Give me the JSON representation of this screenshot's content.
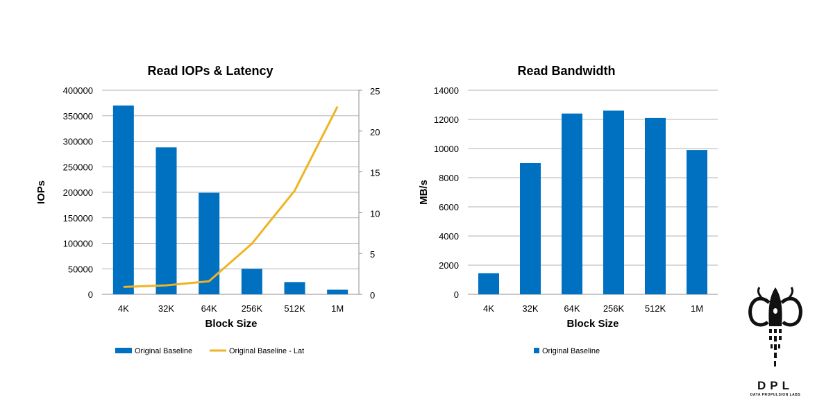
{
  "chart_data": [
    {
      "type": "bar",
      "title": "Read IOPs & Latency",
      "xlabel": "Block Size",
      "ylabel": "IOPs",
      "categories": [
        "4K",
        "32K",
        "64K",
        "256K",
        "512K",
        "1M"
      ],
      "ylim": [
        0,
        400000
      ],
      "y_ticks": [
        "0",
        "50000",
        "100000",
        "150000",
        "200000",
        "250000",
        "300000",
        "350000",
        "400000"
      ],
      "y2lim": [
        0,
        25
      ],
      "y2_ticks": [
        "0",
        "5",
        "10",
        "15",
        "20",
        "25"
      ],
      "grid": true,
      "legend_position": "bottom",
      "series": [
        {
          "name": "Original Baseline",
          "type": "bar",
          "axis": "left",
          "color": "#0070C0",
          "values": [
            370000,
            288000,
            199000,
            50000,
            24000,
            9000
          ]
        },
        {
          "name": "Original Baseline - Lat",
          "type": "line",
          "axis": "right",
          "color": "#F0B323",
          "values": [
            0.9,
            1.1,
            1.6,
            6.2,
            12.7,
            23.0
          ]
        }
      ]
    },
    {
      "type": "bar",
      "title": "Read Bandwidth",
      "xlabel": "Block Size",
      "ylabel": "MB/s",
      "categories": [
        "4K",
        "32K",
        "64K",
        "256K",
        "512K",
        "1M"
      ],
      "ylim": [
        0,
        14000
      ],
      "y_ticks": [
        "0",
        "2000",
        "4000",
        "6000",
        "8000",
        "10000",
        "12000",
        "14000"
      ],
      "grid": true,
      "legend_position": "bottom",
      "series": [
        {
          "name": "Original Baseline",
          "type": "bar",
          "color": "#0070C0",
          "values": [
            1450,
            9000,
            12400,
            12600,
            12100,
            9900
          ]
        }
      ]
    }
  ],
  "logo": {
    "text": "DPL",
    "subtitle": "DATA PROPULSION LABS"
  }
}
